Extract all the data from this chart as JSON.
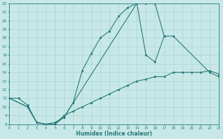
{
  "xlabel": "Humidex (Indice chaleur)",
  "bg_color": "#c8e8e8",
  "line_color": "#2a7a7a",
  "grid_color": "#b8d8d8",
  "xlim": [
    0,
    23
  ],
  "ylim": [
    8,
    22
  ],
  "xticks": [
    0,
    1,
    2,
    3,
    4,
    5,
    6,
    7,
    8,
    9,
    10,
    11,
    12,
    13,
    14,
    15,
    16,
    17,
    18,
    19,
    20,
    21,
    22,
    23
  ],
  "yticks": [
    8,
    9,
    10,
    11,
    12,
    13,
    14,
    15,
    16,
    17,
    18,
    19,
    20,
    21,
    22
  ],
  "line1_x": [
    0,
    1,
    2,
    3,
    4,
    5,
    6,
    7,
    8,
    9,
    10,
    11,
    12,
    13,
    14,
    15,
    16,
    17
  ],
  "line1_y": [
    11,
    11,
    10.2,
    8.2,
    8,
    8.2,
    8.8,
    10.5,
    14.2,
    16.2,
    18,
    18.8,
    20.5,
    21.5,
    22,
    22,
    22,
    18.2
  ],
  "line2_x": [
    0,
    2,
    3,
    4,
    5,
    6,
    14,
    15,
    16,
    17,
    18,
    22,
    23
  ],
  "line2_y": [
    11,
    10,
    8.2,
    8,
    8,
    8.8,
    22,
    16,
    15.2,
    18.2,
    18.2,
    14,
    13.5
  ],
  "line3_x": [
    0,
    2,
    3,
    4,
    5,
    6,
    7,
    8,
    9,
    10,
    11,
    12,
    13,
    14,
    15,
    16,
    17,
    18,
    19,
    20,
    21,
    22,
    23
  ],
  "line3_y": [
    11,
    10,
    8.2,
    8,
    8,
    9,
    9.5,
    10,
    10.5,
    11,
    11.5,
    12,
    12.5,
    13,
    13.2,
    13.5,
    13.5,
    14,
    14,
    14,
    14,
    14.2,
    13.8
  ]
}
